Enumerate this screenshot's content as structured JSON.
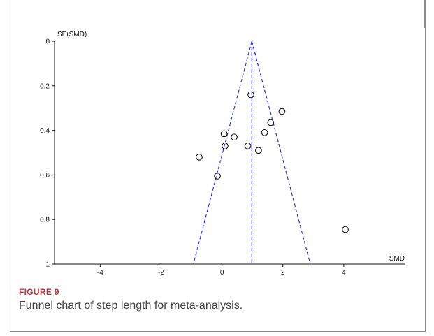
{
  "figure": {
    "label": "FIGURE 9",
    "caption": "Funnel chart of step length for meta-analysis."
  },
  "colors": {
    "axis": "#111111",
    "funnel": "#2b3cd6",
    "marker": "#111111",
    "figure_label": "#b0393a",
    "caption": "#444444"
  },
  "chart_data": {
    "type": "scatter",
    "title": "",
    "xlabel": "SMD",
    "ylabel": "SE(SMD)",
    "xlim": [
      -5.5,
      6
    ],
    "ylim": [
      0,
      1
    ],
    "y_inverted": true,
    "x_ticks": [
      -4,
      -2,
      0,
      2,
      4
    ],
    "x_tick_labels": [
      "-4",
      "-2",
      "0",
      "2",
      "4"
    ],
    "y_ticks": [
      0,
      0.2,
      0.4,
      0.6,
      0.8,
      1
    ],
    "y_tick_labels": [
      "0",
      "0.2",
      "0.4",
      "0.6",
      "0.8",
      "1"
    ],
    "grid": false,
    "pooled_estimate": 0.98,
    "funnel_limits_at_se1": [
      -0.94,
      2.9
    ],
    "points": [
      {
        "x": 0.95,
        "y": 0.24
      },
      {
        "x": 1.97,
        "y": 0.315
      },
      {
        "x": 1.6,
        "y": 0.365
      },
      {
        "x": 1.4,
        "y": 0.41
      },
      {
        "x": 0.07,
        "y": 0.415
      },
      {
        "x": 0.4,
        "y": 0.43
      },
      {
        "x": 0.1,
        "y": 0.47
      },
      {
        "x": 0.85,
        "y": 0.47
      },
      {
        "x": 1.2,
        "y": 0.49
      },
      {
        "x": -0.75,
        "y": 0.52
      },
      {
        "x": -0.15,
        "y": 0.605
      },
      {
        "x": 4.05,
        "y": 0.845
      }
    ]
  }
}
